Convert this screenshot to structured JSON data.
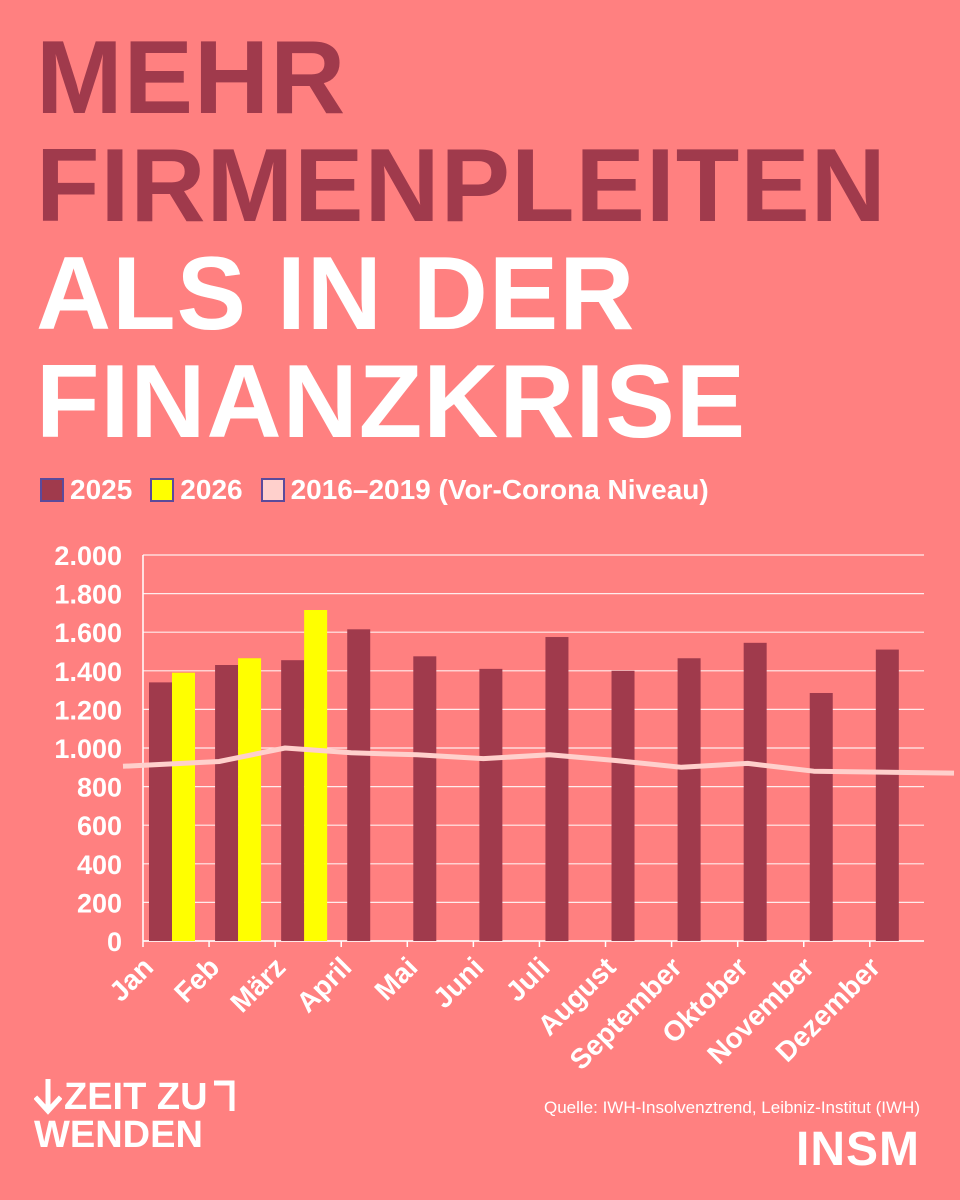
{
  "title": {
    "line1": "MEHR",
    "line2": "FIRMENPLEITEN",
    "line3": "ALS IN DER",
    "line4": "FINANZKRISE"
  },
  "legend": {
    "s2025": "2025",
    "s2026": "2026",
    "baseline": "2016–2019 (Vor-Corona Niveau)"
  },
  "colors": {
    "background": "#ff8080",
    "s2025": "#a03a4c",
    "s2026": "#ffff00",
    "baseline": "#ffd0cc",
    "title_dark": "#a03a4c",
    "title_light": "#ffffff"
  },
  "chart_data": {
    "type": "bar",
    "categories": [
      "Jan",
      "Feb",
      "März",
      "April",
      "Mai",
      "Juni",
      "Juli",
      "August",
      "September",
      "Oktober",
      "November",
      "Dezember"
    ],
    "series": [
      {
        "name": "2025",
        "kind": "bar",
        "values": [
          1340,
          1430,
          1455,
          1615,
          1475,
          1410,
          1575,
          1400,
          1465,
          1545,
          1285,
          1510
        ]
      },
      {
        "name": "2026",
        "kind": "bar",
        "values": [
          1390,
          1465,
          1715,
          null,
          null,
          null,
          null,
          null,
          null,
          null,
          null,
          null
        ]
      },
      {
        "name": "2016–2019 (Vor-Corona Niveau)",
        "kind": "line",
        "values": [
          905,
          930,
          1000,
          975,
          965,
          945,
          965,
          935,
          900,
          920,
          880,
          870
        ]
      }
    ],
    "ylim": [
      0,
      2000
    ],
    "yticks": [
      0,
      200,
      400,
      600,
      800,
      1000,
      1200,
      1400,
      1600,
      1800,
      2000
    ],
    "ytick_labels": [
      "0",
      "200",
      "400",
      "600",
      "800",
      "1.000",
      "1.200",
      "1.400",
      "1.600",
      "1.800",
      "2.000"
    ],
    "grid": true,
    "legend_position": "top-left"
  },
  "footer": {
    "logo_line1": "ZEIT ZU",
    "logo_line2": "WENDEN",
    "source": "Quelle: IWH-Insolvenztrend, Leibniz-Institut (IWH)",
    "brand": "INSM"
  }
}
